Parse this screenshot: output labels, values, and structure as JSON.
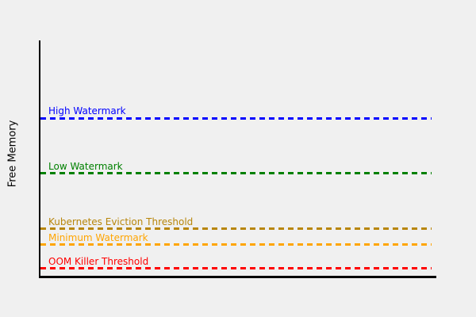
{
  "figure": {
    "background_color": "#f0f0f0",
    "axis_color": "#000000"
  },
  "chart_data": {
    "type": "line",
    "title": "",
    "xlabel": "",
    "ylabel": "Free Memory",
    "grid": false,
    "legend_position": "none",
    "x_axis": {
      "ticks": [],
      "range": null
    },
    "y_axis": {
      "ticks": [],
      "range": [
        0,
        1
      ]
    },
    "description": "Horizontal dashed threshold lines labeled above each line, ordered top to bottom",
    "lines": [
      {
        "label": "High Watermark",
        "color": "#0000ff",
        "style": "dashed",
        "level": 0.67
      },
      {
        "label": "Low Watermark",
        "color": "#008000",
        "style": "dashed",
        "level": 0.435
      },
      {
        "label": "Kubernetes Eviction Threshold",
        "color": "#b8860b",
        "style": "dashed",
        "level": 0.2
      },
      {
        "label": "Minimum Watermark",
        "color": "#ffa500",
        "style": "dashed",
        "level": 0.133
      },
      {
        "label": "OOM Killer Threshold",
        "color": "#ff0000",
        "style": "dashed",
        "level": 0.031
      }
    ]
  }
}
